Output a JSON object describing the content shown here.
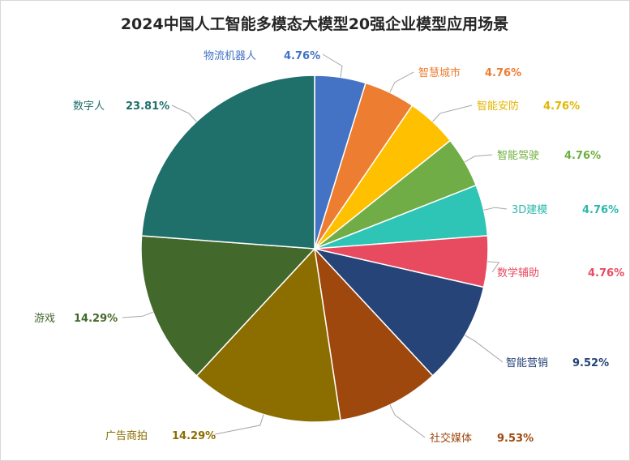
{
  "chart_data": {
    "type": "pie",
    "title": "2024中国人工智能多模态大模型20强企业模型应用场景",
    "start_angle_deg": 0,
    "direction": "clockwise",
    "slices": [
      {
        "label": "物流机器人",
        "value": 4.76,
        "value_label": "4.76%",
        "color": "#4472C4"
      },
      {
        "label": "智慧城市",
        "value": 4.76,
        "value_label": "4.76%",
        "color": "#ED7D31"
      },
      {
        "label": "智能安防",
        "value": 4.76,
        "value_label": "4.76%",
        "color": "#FFC000"
      },
      {
        "label": "智能驾驶",
        "value": 4.76,
        "value_label": "4.76%",
        "color": "#70AD47"
      },
      {
        "label": "3D建模",
        "value": 4.76,
        "value_label": "4.76%",
        "color": "#2EC4B6"
      },
      {
        "label": "数学辅助",
        "value": 4.76,
        "value_label": "4.76%",
        "color": "#E84A5F"
      },
      {
        "label": "智能营销",
        "value": 9.52,
        "value_label": "9.52%",
        "color": "#264478"
      },
      {
        "label": "社交媒体",
        "value": 9.53,
        "value_label": "9.53%",
        "color": "#9E480E"
      },
      {
        "label": "广告商拍",
        "value": 14.29,
        "value_label": "14.29%",
        "color": "#8C6D00"
      },
      {
        "label": "游戏",
        "value": 14.29,
        "value_label": "14.29%",
        "color": "#43682B"
      },
      {
        "label": "数字人",
        "value": 23.81,
        "value_label": "23.81%",
        "color": "#1F6F6B"
      }
    ],
    "label_colors": [
      "#4472C4",
      "#ED7D31",
      "#E3B600",
      "#6FAF3F",
      "#2CB8AC",
      "#E84A5F",
      "#264478",
      "#9E480E",
      "#8C6D00",
      "#43682B",
      "#1F6F6B"
    ],
    "leader_line_color": "#a6a6a6"
  }
}
